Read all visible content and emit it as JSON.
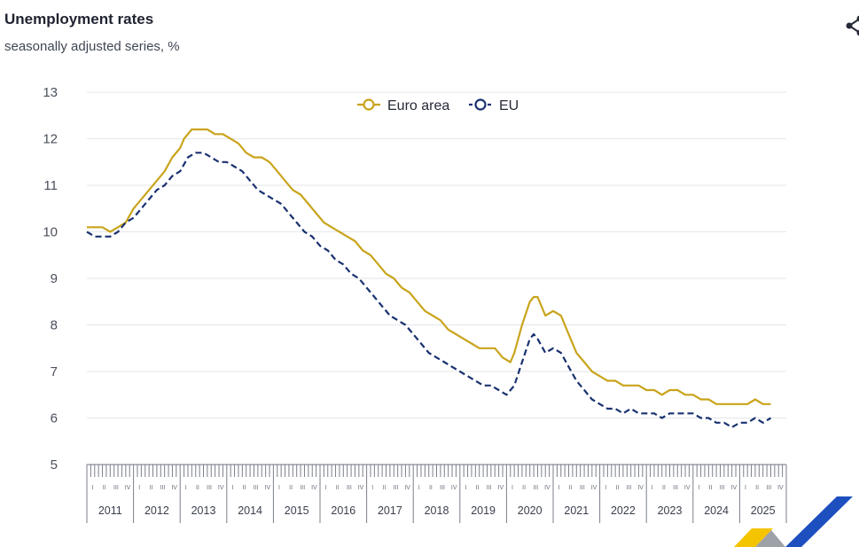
{
  "header": {
    "title": "Unemployment rates",
    "subtitle": "seasonally adjusted series, %"
  },
  "icons": {
    "share": "share-icon",
    "logo": "eurostat-logo"
  },
  "colors": {
    "euro_area": "#c9a41c",
    "eu": "#1a3270",
    "grid": "#e4e6ea"
  },
  "chart_data": {
    "type": "line",
    "title": "Unemployment rates",
    "subtitle": "seasonally adjusted series, %",
    "xlabel": "",
    "ylabel": "",
    "ylim": [
      5,
      13
    ],
    "yticks": [
      5,
      6,
      7,
      8,
      9,
      10,
      11,
      12,
      13
    ],
    "x_range": [
      "2011-01",
      "2025-12"
    ],
    "years": [
      "2011",
      "2012",
      "2013",
      "2014",
      "2015",
      "2016",
      "2017",
      "2018",
      "2019",
      "2020",
      "2021",
      "2022",
      "2023",
      "2024",
      "2025"
    ],
    "quarter_labels": [
      "I",
      "II",
      "III",
      "IV"
    ],
    "grid": true,
    "legend_placement": "top-center",
    "series": [
      {
        "name": "Euro area",
        "style": "solid",
        "points": [
          [
            "2011-01",
            10.1
          ],
          [
            "2011-03",
            10.1
          ],
          [
            "2011-05",
            10.1
          ],
          [
            "2011-07",
            10.0
          ],
          [
            "2011-09",
            10.1
          ],
          [
            "2011-11",
            10.2
          ],
          [
            "2012-01",
            10.5
          ],
          [
            "2012-03",
            10.7
          ],
          [
            "2012-05",
            10.9
          ],
          [
            "2012-07",
            11.1
          ],
          [
            "2012-09",
            11.3
          ],
          [
            "2012-11",
            11.6
          ],
          [
            "2013-01",
            11.8
          ],
          [
            "2013-02",
            12.0
          ],
          [
            "2013-04",
            12.2
          ],
          [
            "2013-06",
            12.2
          ],
          [
            "2013-08",
            12.2
          ],
          [
            "2013-10",
            12.1
          ],
          [
            "2013-12",
            12.1
          ],
          [
            "2014-02",
            12.0
          ],
          [
            "2014-04",
            11.9
          ],
          [
            "2014-06",
            11.7
          ],
          [
            "2014-08",
            11.6
          ],
          [
            "2014-10",
            11.6
          ],
          [
            "2014-12",
            11.5
          ],
          [
            "2015-02",
            11.3
          ],
          [
            "2015-04",
            11.1
          ],
          [
            "2015-06",
            10.9
          ],
          [
            "2015-08",
            10.8
          ],
          [
            "2015-10",
            10.6
          ],
          [
            "2015-12",
            10.4
          ],
          [
            "2016-02",
            10.2
          ],
          [
            "2016-04",
            10.1
          ],
          [
            "2016-06",
            10.0
          ],
          [
            "2016-08",
            9.9
          ],
          [
            "2016-10",
            9.8
          ],
          [
            "2016-12",
            9.6
          ],
          [
            "2017-02",
            9.5
          ],
          [
            "2017-04",
            9.3
          ],
          [
            "2017-06",
            9.1
          ],
          [
            "2017-08",
            9.0
          ],
          [
            "2017-10",
            8.8
          ],
          [
            "2017-12",
            8.7
          ],
          [
            "2018-02",
            8.5
          ],
          [
            "2018-04",
            8.3
          ],
          [
            "2018-06",
            8.2
          ],
          [
            "2018-08",
            8.1
          ],
          [
            "2018-10",
            7.9
          ],
          [
            "2018-12",
            7.8
          ],
          [
            "2019-02",
            7.7
          ],
          [
            "2019-04",
            7.6
          ],
          [
            "2019-06",
            7.5
          ],
          [
            "2019-08",
            7.5
          ],
          [
            "2019-10",
            7.5
          ],
          [
            "2019-12",
            7.3
          ],
          [
            "2020-02",
            7.2
          ],
          [
            "2020-03",
            7.4
          ],
          [
            "2020-05",
            8.0
          ],
          [
            "2020-07",
            8.5
          ],
          [
            "2020-08",
            8.6
          ],
          [
            "2020-09",
            8.6
          ],
          [
            "2020-11",
            8.2
          ],
          [
            "2021-01",
            8.3
          ],
          [
            "2021-03",
            8.2
          ],
          [
            "2021-05",
            7.8
          ],
          [
            "2021-07",
            7.4
          ],
          [
            "2021-09",
            7.2
          ],
          [
            "2021-11",
            7.0
          ],
          [
            "2022-01",
            6.9
          ],
          [
            "2022-03",
            6.8
          ],
          [
            "2022-05",
            6.8
          ],
          [
            "2022-07",
            6.7
          ],
          [
            "2022-09",
            6.7
          ],
          [
            "2022-11",
            6.7
          ],
          [
            "2023-01",
            6.6
          ],
          [
            "2023-03",
            6.6
          ],
          [
            "2023-05",
            6.5
          ],
          [
            "2023-07",
            6.6
          ],
          [
            "2023-09",
            6.6
          ],
          [
            "2023-11",
            6.5
          ],
          [
            "2024-01",
            6.5
          ],
          [
            "2024-03",
            6.4
          ],
          [
            "2024-05",
            6.4
          ],
          [
            "2024-07",
            6.3
          ],
          [
            "2024-09",
            6.3
          ],
          [
            "2024-11",
            6.3
          ],
          [
            "2025-01",
            6.3
          ],
          [
            "2025-03",
            6.3
          ],
          [
            "2025-05",
            6.4
          ],
          [
            "2025-07",
            6.3
          ],
          [
            "2025-09",
            6.3
          ]
        ]
      },
      {
        "name": "EU",
        "style": "dashed",
        "points": [
          [
            "2011-01",
            10.0
          ],
          [
            "2011-03",
            9.9
          ],
          [
            "2011-05",
            9.9
          ],
          [
            "2011-07",
            9.9
          ],
          [
            "2011-09",
            10.0
          ],
          [
            "2011-11",
            10.2
          ],
          [
            "2012-01",
            10.3
          ],
          [
            "2012-03",
            10.5
          ],
          [
            "2012-05",
            10.7
          ],
          [
            "2012-07",
            10.9
          ],
          [
            "2012-09",
            11.0
          ],
          [
            "2012-11",
            11.2
          ],
          [
            "2013-01",
            11.3
          ],
          [
            "2013-03",
            11.6
          ],
          [
            "2013-05",
            11.7
          ],
          [
            "2013-07",
            11.7
          ],
          [
            "2013-09",
            11.6
          ],
          [
            "2013-11",
            11.5
          ],
          [
            "2014-01",
            11.5
          ],
          [
            "2014-03",
            11.4
          ],
          [
            "2014-05",
            11.3
          ],
          [
            "2014-07",
            11.1
          ],
          [
            "2014-09",
            10.9
          ],
          [
            "2014-11",
            10.8
          ],
          [
            "2015-01",
            10.7
          ],
          [
            "2015-03",
            10.6
          ],
          [
            "2015-05",
            10.4
          ],
          [
            "2015-07",
            10.2
          ],
          [
            "2015-09",
            10.0
          ],
          [
            "2015-11",
            9.9
          ],
          [
            "2016-01",
            9.7
          ],
          [
            "2016-03",
            9.6
          ],
          [
            "2016-05",
            9.4
          ],
          [
            "2016-07",
            9.3
          ],
          [
            "2016-09",
            9.1
          ],
          [
            "2016-11",
            9.0
          ],
          [
            "2017-01",
            8.8
          ],
          [
            "2017-03",
            8.6
          ],
          [
            "2017-05",
            8.4
          ],
          [
            "2017-07",
            8.2
          ],
          [
            "2017-09",
            8.1
          ],
          [
            "2017-11",
            8.0
          ],
          [
            "2018-01",
            7.8
          ],
          [
            "2018-03",
            7.6
          ],
          [
            "2018-05",
            7.4
          ],
          [
            "2018-07",
            7.3
          ],
          [
            "2018-09",
            7.2
          ],
          [
            "2018-11",
            7.1
          ],
          [
            "2019-01",
            7.0
          ],
          [
            "2019-03",
            6.9
          ],
          [
            "2019-05",
            6.8
          ],
          [
            "2019-07",
            6.7
          ],
          [
            "2019-09",
            6.7
          ],
          [
            "2019-11",
            6.6
          ],
          [
            "2020-01",
            6.5
          ],
          [
            "2020-03",
            6.7
          ],
          [
            "2020-05",
            7.2
          ],
          [
            "2020-07",
            7.7
          ],
          [
            "2020-08",
            7.8
          ],
          [
            "2020-09",
            7.7
          ],
          [
            "2020-11",
            7.4
          ],
          [
            "2021-01",
            7.5
          ],
          [
            "2021-03",
            7.4
          ],
          [
            "2021-05",
            7.1
          ],
          [
            "2021-07",
            6.8
          ],
          [
            "2021-09",
            6.6
          ],
          [
            "2021-11",
            6.4
          ],
          [
            "2022-01",
            6.3
          ],
          [
            "2022-03",
            6.2
          ],
          [
            "2022-05",
            6.2
          ],
          [
            "2022-07",
            6.1
          ],
          [
            "2022-09",
            6.2
          ],
          [
            "2022-11",
            6.1
          ],
          [
            "2023-01",
            6.1
          ],
          [
            "2023-03",
            6.1
          ],
          [
            "2023-05",
            6.0
          ],
          [
            "2023-07",
            6.1
          ],
          [
            "2023-09",
            6.1
          ],
          [
            "2023-11",
            6.1
          ],
          [
            "2024-01",
            6.1
          ],
          [
            "2024-03",
            6.0
          ],
          [
            "2024-05",
            6.0
          ],
          [
            "2024-07",
            5.9
          ],
          [
            "2024-09",
            5.9
          ],
          [
            "2024-11",
            5.8
          ],
          [
            "2025-01",
            5.9
          ],
          [
            "2025-03",
            5.9
          ],
          [
            "2025-05",
            6.0
          ],
          [
            "2025-07",
            5.9
          ],
          [
            "2025-09",
            6.0
          ]
        ]
      }
    ]
  }
}
